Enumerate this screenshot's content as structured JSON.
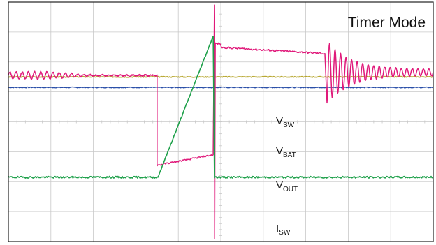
{
  "chart_data": {
    "type": "line",
    "title": "Timer Mode",
    "grid": true,
    "x_divisions": 10,
    "y_divisions": 8,
    "colors": {
      "background": "#ffffff",
      "frame": "#222222",
      "grid": "#c8c8c8",
      "v_sw": "#e0197a",
      "v_bat": "#b8a832",
      "v_out": "#2a4fa8",
      "i_sw": "#1ea04a",
      "text": "#111111"
    },
    "traces": [
      {
        "id": "v_sw",
        "label_main": "V",
        "label_sub": "SW"
      },
      {
        "id": "v_bat",
        "label_main": "V",
        "label_sub": "BAT"
      },
      {
        "id": "v_out",
        "label_main": "V",
        "label_sub": "OUT"
      },
      {
        "id": "i_sw",
        "label_main": "I",
        "label_sub": "SW"
      }
    ],
    "series": [
      {
        "id": "v_sw",
        "shape": [
          {
            "x": 0.0,
            "y": 1.55,
            "ripple": 0.12
          },
          {
            "x": 3.5,
            "y": 1.55,
            "ripple": 0.12
          },
          {
            "x": 3.5,
            "y": 1.55
          },
          {
            "x": 3.5,
            "y": -1.45
          },
          {
            "x": 4.83,
            "y": -1.1
          },
          {
            "x": 4.85,
            "y": 3.9
          },
          {
            "x": 4.87,
            "y": 2.5
          },
          {
            "x": 7.45,
            "y": 2.28
          },
          {
            "x": 7.45,
            "y": 2.28
          },
          {
            "x": 7.5,
            "y": 1.0,
            "ringing": true
          },
          {
            "x": 10.0,
            "y": 1.65,
            "ripple": 0.1
          }
        ]
      },
      {
        "id": "v_bat",
        "shape": [
          {
            "x": 0.0,
            "y": 1.5
          },
          {
            "x": 10.0,
            "y": 1.5
          }
        ]
      },
      {
        "id": "v_out",
        "shape": [
          {
            "x": 0.0,
            "y": 1.15
          },
          {
            "x": 10.0,
            "y": 1.15
          }
        ]
      },
      {
        "id": "i_sw",
        "shape": [
          {
            "x": 0.0,
            "y": -1.85
          },
          {
            "x": 3.52,
            "y": -1.85
          },
          {
            "x": 4.83,
            "y": 2.9
          },
          {
            "x": 4.85,
            "y": -1.85
          },
          {
            "x": 10.0,
            "y": -1.85
          }
        ]
      }
    ]
  }
}
